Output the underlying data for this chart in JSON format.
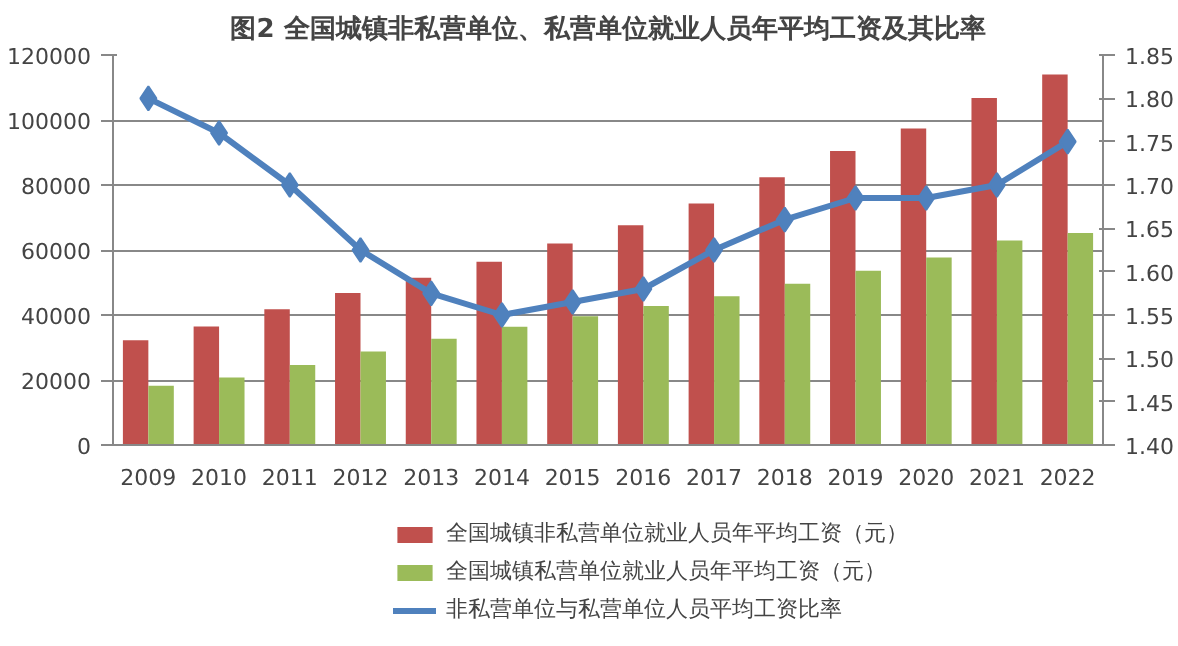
{
  "chart_data": {
    "type": "bar",
    "title": "图2 全国城镇非私营单位、私营单位就业人员年平均工资及其比率",
    "categories": [
      "2009",
      "2010",
      "2011",
      "2012",
      "2013",
      "2014",
      "2015",
      "2016",
      "2017",
      "2018",
      "2019",
      "2020",
      "2021",
      "2022"
    ],
    "series": [
      {
        "name": "全国城镇非私营单位就业人员年平均工资（元）",
        "color": "#c0504d",
        "values": [
          32200,
          36500,
          41800,
          46800,
          51500,
          56400,
          62000,
          67600,
          74300,
          82400,
          90500,
          97400,
          106800,
          114000
        ]
      },
      {
        "name": "全国城镇私营单位就业人员年平均工资（元）",
        "color": "#9bbb59",
        "values": [
          18200,
          20800,
          24600,
          28800,
          32700,
          36400,
          39600,
          42800,
          45800,
          49600,
          53600,
          57700,
          62900,
          65200
        ]
      },
      {
        "name": "非私营单位与私营单位人员平均工资比率",
        "color": "#4f81bd",
        "type": "line",
        "axis": "y2",
        "marker": "diamond",
        "values": [
          1.8,
          1.76,
          1.7,
          1.625,
          1.575,
          1.55,
          1.565,
          1.58,
          1.625,
          1.66,
          1.685,
          1.685,
          1.7,
          1.75
        ]
      }
    ],
    "ylim": [
      0,
      120000
    ],
    "yticks": [
      0,
      20000,
      40000,
      60000,
      80000,
      100000,
      120000
    ],
    "y2lim": [
      1.4,
      1.85
    ],
    "y2ticks": [
      {
        "value": 1.4,
        "label": "1.40"
      },
      1.45,
      {
        "value": 1.5,
        "label": "1.50"
      },
      1.55,
      {
        "value": 1.6,
        "label": "1.60"
      },
      1.65,
      {
        "value": 1.7,
        "label": "1.70"
      },
      1.75,
      {
        "value": 1.8,
        "label": "1.80"
      },
      1.85
    ],
    "grid": "y",
    "legend": "bottom"
  }
}
